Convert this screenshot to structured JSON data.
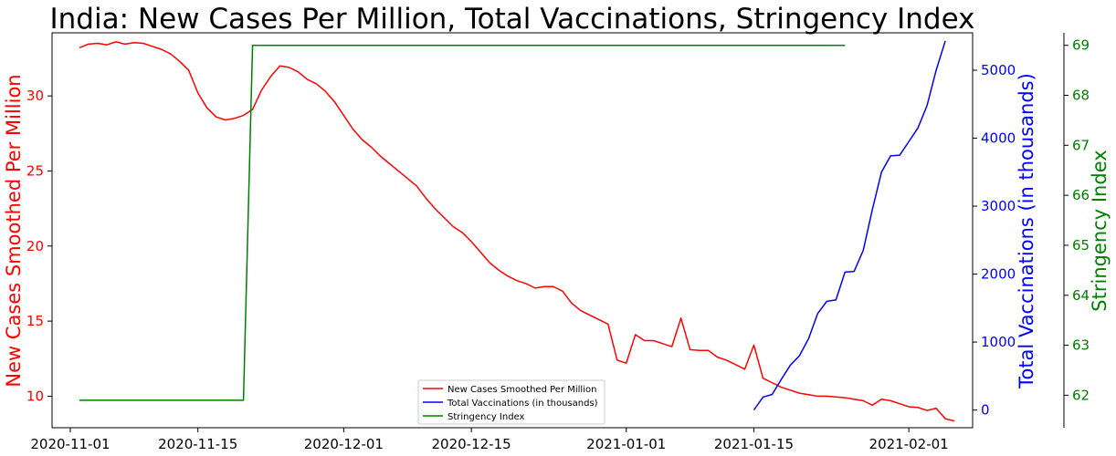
{
  "chart_data": {
    "type": "line",
    "title": "India: New Cases Per Million, Total Vaccinations, Stringency Index",
    "x_ticks": [
      "2020-11-01",
      "2020-11-15",
      "2020-12-01",
      "2020-12-15",
      "2021-01-01",
      "2021-01-15",
      "2021-02-01"
    ],
    "axes": {
      "left": {
        "label": "New Cases Smoothed Per Million",
        "color": "#ff0000",
        "ticks": [
          10,
          15,
          20,
          25,
          30
        ],
        "range": [
          7.9,
          34.2
        ]
      },
      "right": {
        "label": "Total Vaccinations (in thousands)",
        "color": "#0000ff",
        "ticks": [
          0,
          1000,
          2000,
          3000,
          4000,
          5000
        ],
        "range": [
          -260,
          5550
        ]
      },
      "right2": {
        "label": "Stringency Index",
        "color": "#008000",
        "ticks": [
          62,
          63,
          64,
          65,
          66,
          67,
          68,
          69
        ],
        "range": [
          61.35,
          69.25
        ]
      }
    },
    "legend": {
      "position": "bottom-center",
      "entries": [
        "New Cases Smoothed Per Million",
        "Total Vaccinations (in thousands)",
        "Stringency Index"
      ]
    },
    "series": [
      {
        "name": "New Cases Smoothed Per Million",
        "axis": "left",
        "color": "#ff0000",
        "points": [
          [
            "2020-11-02",
            33.2
          ],
          [
            "2020-11-03",
            33.45
          ],
          [
            "2020-11-04",
            33.5
          ],
          [
            "2020-11-05",
            33.4
          ],
          [
            "2020-11-06",
            33.6
          ],
          [
            "2020-11-07",
            33.45
          ],
          [
            "2020-11-08",
            33.55
          ],
          [
            "2020-11-09",
            33.5
          ],
          [
            "2020-11-10",
            33.3
          ],
          [
            "2020-11-11",
            33.1
          ],
          [
            "2020-11-12",
            32.8
          ],
          [
            "2020-11-13",
            32.3
          ],
          [
            "2020-11-14",
            31.7
          ],
          [
            "2020-11-15",
            30.2
          ],
          [
            "2020-11-16",
            29.2
          ],
          [
            "2020-11-17",
            28.6
          ],
          [
            "2020-11-18",
            28.4
          ],
          [
            "2020-11-19",
            28.5
          ],
          [
            "2020-11-20",
            28.7
          ],
          [
            "2020-11-21",
            29.1
          ],
          [
            "2020-11-22",
            30.4
          ],
          [
            "2020-11-23",
            31.3
          ],
          [
            "2020-11-24",
            32.0
          ],
          [
            "2020-11-25",
            31.9
          ],
          [
            "2020-11-26",
            31.6
          ],
          [
            "2020-11-27",
            31.1
          ],
          [
            "2020-11-28",
            30.8
          ],
          [
            "2020-11-29",
            30.3
          ],
          [
            "2020-11-30",
            29.6
          ],
          [
            "2020-12-01",
            28.7
          ],
          [
            "2020-12-02",
            27.8
          ],
          [
            "2020-12-03",
            27.1
          ],
          [
            "2020-12-04",
            26.6
          ],
          [
            "2020-12-05",
            26.0
          ],
          [
            "2020-12-06",
            25.5
          ],
          [
            "2020-12-07",
            25.0
          ],
          [
            "2020-12-08",
            24.5
          ],
          [
            "2020-12-09",
            24.0
          ],
          [
            "2020-12-10",
            23.2
          ],
          [
            "2020-12-11",
            22.5
          ],
          [
            "2020-12-12",
            21.9
          ],
          [
            "2020-12-13",
            21.3
          ],
          [
            "2020-12-14",
            20.9
          ],
          [
            "2020-12-15",
            20.3
          ],
          [
            "2020-12-16",
            19.6
          ],
          [
            "2020-12-17",
            18.9
          ],
          [
            "2020-12-18",
            18.4
          ],
          [
            "2020-12-19",
            18.0
          ],
          [
            "2020-12-20",
            17.7
          ],
          [
            "2020-12-21",
            17.5
          ],
          [
            "2020-12-22",
            17.2
          ],
          [
            "2020-12-23",
            17.3
          ],
          [
            "2020-12-24",
            17.3
          ],
          [
            "2020-12-25",
            17.0
          ],
          [
            "2020-12-26",
            16.2
          ],
          [
            "2020-12-27",
            15.7
          ],
          [
            "2020-12-28",
            15.4
          ],
          [
            "2020-12-29",
            15.1
          ],
          [
            "2020-12-30",
            14.8
          ],
          [
            "2020-12-31",
            12.4
          ],
          [
            "2021-01-01",
            12.2
          ],
          [
            "2021-01-02",
            14.1
          ],
          [
            "2021-01-03",
            13.7
          ],
          [
            "2021-01-04",
            13.7
          ],
          [
            "2021-01-05",
            13.5
          ],
          [
            "2021-01-06",
            13.3
          ],
          [
            "2021-01-07",
            15.2
          ],
          [
            "2021-01-08",
            13.1
          ],
          [
            "2021-01-09",
            13.05
          ],
          [
            "2021-01-10",
            13.05
          ],
          [
            "2021-01-11",
            12.6
          ],
          [
            "2021-01-12",
            12.4
          ],
          [
            "2021-01-13",
            12.1
          ],
          [
            "2021-01-14",
            11.8
          ],
          [
            "2021-01-15",
            13.4
          ],
          [
            "2021-01-16",
            11.2
          ],
          [
            "2021-01-17",
            10.9
          ],
          [
            "2021-01-18",
            10.6
          ],
          [
            "2021-01-19",
            10.4
          ],
          [
            "2021-01-20",
            10.2
          ],
          [
            "2021-01-21",
            10.1
          ],
          [
            "2021-01-22",
            10.0
          ],
          [
            "2021-01-23",
            10.0
          ],
          [
            "2021-01-24",
            9.95
          ],
          [
            "2021-01-25",
            9.9
          ],
          [
            "2021-01-26",
            9.8
          ],
          [
            "2021-01-27",
            9.7
          ],
          [
            "2021-01-28",
            9.4
          ],
          [
            "2021-01-29",
            9.8
          ],
          [
            "2021-01-30",
            9.7
          ],
          [
            "2021-01-31",
            9.5
          ],
          [
            "2021-02-01",
            9.3
          ],
          [
            "2021-02-02",
            9.25
          ],
          [
            "2021-02-03",
            9.05
          ],
          [
            "2021-02-04",
            9.2
          ],
          [
            "2021-02-05",
            8.5
          ],
          [
            "2021-02-06",
            8.35
          ]
        ]
      },
      {
        "name": "Total Vaccinations (in thousands)",
        "axis": "right",
        "color": "#0000ff",
        "points": [
          [
            "2021-01-15",
            0
          ],
          [
            "2021-01-16",
            190
          ],
          [
            "2021-01-17",
            230
          ],
          [
            "2021-01-18",
            450
          ],
          [
            "2021-01-19",
            660
          ],
          [
            "2021-01-20",
            800
          ],
          [
            "2021-01-21",
            1050
          ],
          [
            "2021-01-22",
            1420
          ],
          [
            "2021-01-23",
            1600
          ],
          [
            "2021-01-24",
            1620
          ],
          [
            "2021-01-25",
            2030
          ],
          [
            "2021-01-26",
            2040
          ],
          [
            "2021-01-27",
            2350
          ],
          [
            "2021-01-28",
            2950
          ],
          [
            "2021-01-29",
            3500
          ],
          [
            "2021-01-30",
            3740
          ],
          [
            "2021-01-31",
            3750
          ],
          [
            "2021-02-01",
            3950
          ],
          [
            "2021-02-02",
            4150
          ],
          [
            "2021-02-03",
            4480
          ],
          [
            "2021-02-04",
            5000
          ],
          [
            "2021-02-05",
            5430
          ]
        ]
      },
      {
        "name": "Stringency Index",
        "axis": "right2",
        "color": "#008000",
        "points": [
          [
            "2020-11-02",
            61.9
          ],
          [
            "2020-11-20",
            61.9
          ],
          [
            "2020-11-21",
            69.0
          ],
          [
            "2021-01-25",
            69.0
          ]
        ]
      }
    ]
  }
}
